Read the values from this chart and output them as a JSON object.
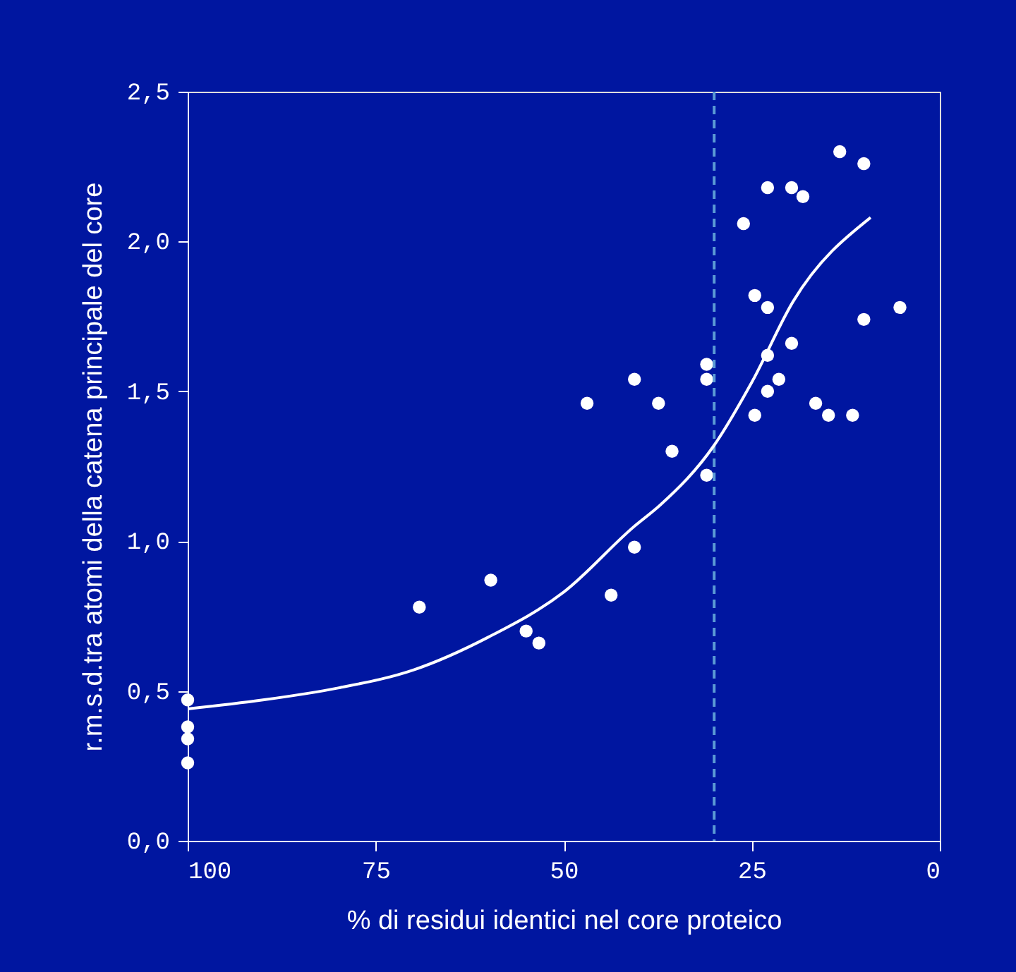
{
  "chart_data": {
    "type": "scatter",
    "xlabel": "% di residui identici nel core proteico",
    "ylabel": "r.m.s.d.tra atomi della catena principale del core",
    "xlim": [
      100,
      0
    ],
    "xticks": [
      100,
      75,
      50,
      25,
      0
    ],
    "ylim": [
      0,
      2.5
    ],
    "yticks": [
      {
        "value": 0,
        "label": "0,0"
      },
      {
        "value": 0.5,
        "label": "0,5"
      },
      {
        "value": 1,
        "label": "1,0"
      },
      {
        "value": 1.5,
        "label": "1,5"
      },
      {
        "value": 2,
        "label": "2,0"
      },
      {
        "value": 2.5,
        "label": "2,5"
      }
    ],
    "grid": false,
    "marker": "circle",
    "series": [
      {
        "color": "#ffffff",
        "x": [
          100,
          100,
          100,
          100,
          69.2,
          59.7,
          55,
          53.3,
          46.9,
          43.7,
          40.6,
          40.6,
          37.4,
          35.6,
          31,
          31,
          31,
          26.1,
          24.6,
          22.9,
          22.9,
          22.9,
          22.9,
          24.6,
          21.4,
          19.7,
          19.7,
          18.2,
          16.5,
          14.8,
          13.3,
          11.6,
          10.1,
          10.1,
          5.3
        ],
        "values": [
          0.47,
          0.38,
          0.34,
          0.26,
          0.78,
          0.87,
          0.7,
          0.66,
          1.46,
          0.82,
          1.54,
          0.98,
          1.46,
          1.3,
          1.59,
          1.54,
          1.22,
          2.06,
          1.82,
          2.18,
          1.78,
          1.62,
          1.5,
          1.42,
          1.54,
          1.66,
          2.18,
          2.15,
          1.46,
          1.42,
          2.3,
          1.42,
          2.26,
          1.74,
          1.78
        ]
      },
      {
        "type": "line",
        "color": "#ffffff",
        "marker": "none",
        "line_style": "solid",
        "x": [
          100,
          90,
          80,
          70,
          60,
          50,
          40.6,
          37.2,
          30,
          25,
          19.5,
          9.2
        ],
        "values": [
          0.44,
          0.47,
          0.51,
          0.57,
          0.68,
          0.83,
          1.05,
          1.12,
          1.32,
          1.53,
          1.8,
          2.08
        ]
      }
    ],
    "ref_lines": [
      {
        "axis": "x",
        "value": 30,
        "color": "#5b9bd5",
        "line_style": "dashed"
      }
    ]
  }
}
